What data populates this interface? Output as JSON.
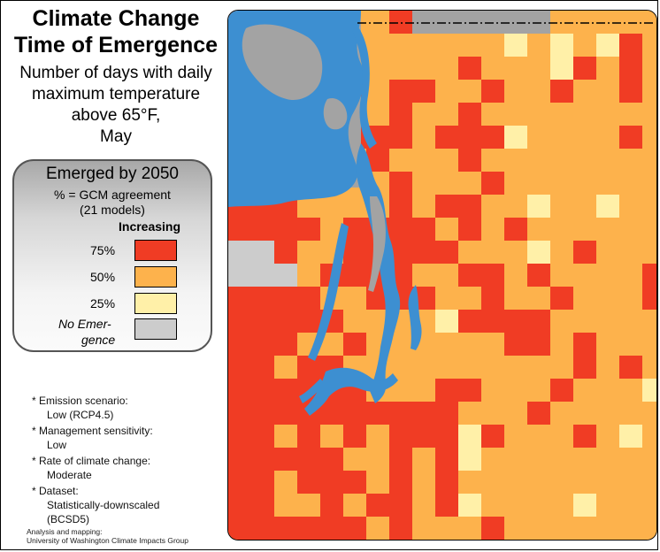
{
  "title": {
    "line1": "Climate Change",
    "line2": "Time of Emergence"
  },
  "subtitle": {
    "line1": "Number of days with daily",
    "line2": "maximum temperature",
    "line3": "above 65°F,",
    "line4": "May"
  },
  "legend": {
    "heading": "Emerged by 2050",
    "agreement": "% = GCM agreement",
    "models": "(21 models)",
    "direction": "Increasing",
    "items": [
      {
        "label": "75%",
        "color": "#f03c24"
      },
      {
        "label": "50%",
        "color": "#fdb24c"
      },
      {
        "label": "25%",
        "color": "#fff0a8"
      }
    ],
    "no_emergence": {
      "label_line1": "No Emer-",
      "label_line2": "gence",
      "color": "#cccccc"
    }
  },
  "notes": [
    {
      "heading": "Emission scenario:",
      "value": "Low (RCP4.5)"
    },
    {
      "heading": "Management sensitivity:",
      "value": "Low"
    },
    {
      "heading": "Rate of climate change:",
      "value": "Moderate"
    },
    {
      "heading": "Dataset:",
      "value": "Statistically-downscaled",
      "value2": "(BCSD5)"
    }
  ],
  "credit": {
    "line1": "Analysis and mapping:",
    "line2": "University of Washington Climate Impacts Group"
  },
  "colors": {
    "red": "#f03c24",
    "orange": "#fdb24c",
    "yellow": "#fff0a8",
    "gray": "#a3a3a3",
    "water": "#3d8fd1"
  }
}
